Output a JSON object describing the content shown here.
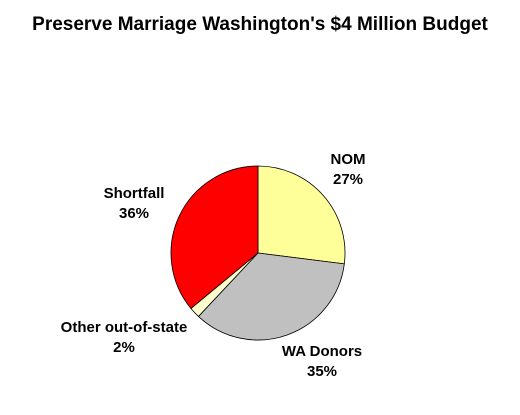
{
  "chart_data": {
    "type": "pie",
    "title": "Preserve Marriage Washington's $4 Million Budget",
    "slices": [
      {
        "label": "NOM",
        "value": 27,
        "display": "27%",
        "color": "#FFFF99"
      },
      {
        "label": "WA Donors",
        "value": 35,
        "display": "35%",
        "color": "#C0C0C0"
      },
      {
        "label": "Other out-of-state",
        "value": 2,
        "display": "2%",
        "color": "#FFFFCC"
      },
      {
        "label": "Shortfall",
        "value": 36,
        "display": "36%",
        "color": "#FF0000"
      }
    ],
    "start": "12 o'clock",
    "direction": "clockwise",
    "legend": "none"
  }
}
